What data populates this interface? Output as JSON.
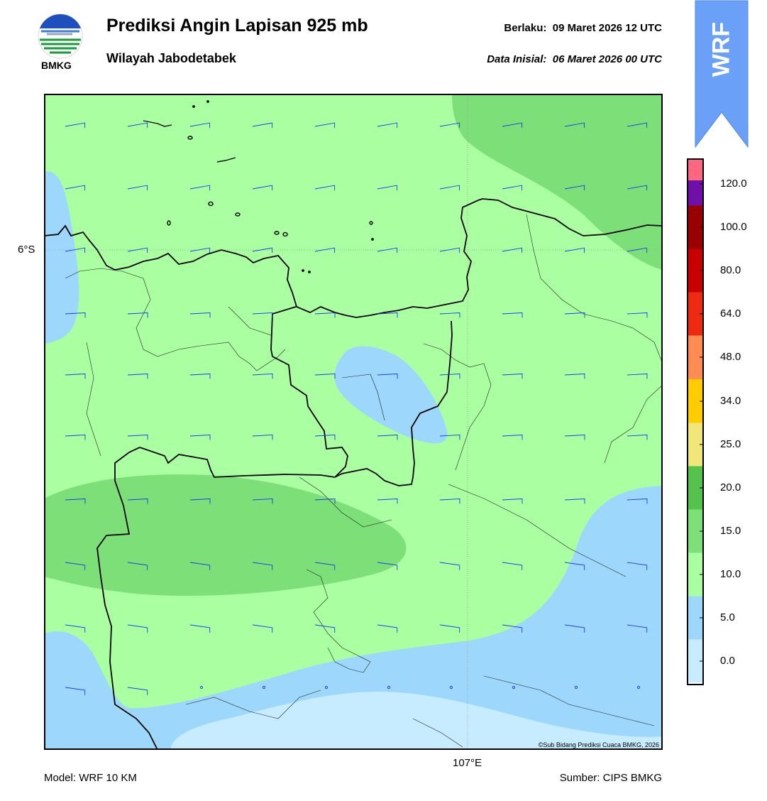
{
  "header": {
    "title": "Prediksi Angin Lapisan 925 mb",
    "subtitle": "Wilayah Jabodetabek",
    "valid_label": "Berlaku:",
    "valid_time": "09 Maret 2026 12 UTC",
    "init_label": "Data Inisial:",
    "init_time": "06 Maret 2026 00 UTC"
  },
  "logo": {
    "text": "BMKG",
    "icon": "bmkg-logo"
  },
  "badge": {
    "text": "WRF",
    "color": "#6aa0f8"
  },
  "map": {
    "lat_label": "6°S",
    "lon_label": "107°E",
    "credit": "©Sub Bidang Prediksi Cuaca BMKG, 2026",
    "colors": {
      "calm": "#c8ecff",
      "light": "#9dd8fc",
      "moderate": "#aaffa1",
      "strong": "#7ddf78",
      "barb": "#1a3ee8"
    }
  },
  "colorbar": {
    "ticks": [
      "0.0",
      "5.0",
      "10.0",
      "15.0",
      "20.0",
      "25.0",
      "34.0",
      "48.0",
      "64.0",
      "80.0",
      "100.0",
      "120.0"
    ],
    "colors": [
      "#ffffff",
      "#c8ecff",
      "#9dd8fc",
      "#aaffa1",
      "#7ddf78",
      "#55c24e",
      "#f0e67a",
      "#ffcc00",
      "#ff8c52",
      "#ee2a12",
      "#c80000",
      "#990000",
      "#7010a8",
      "#ff6680"
    ]
  },
  "footer": {
    "model": "Model: WRF 10 KM",
    "source": "Sumber: CIPS BMKG"
  }
}
